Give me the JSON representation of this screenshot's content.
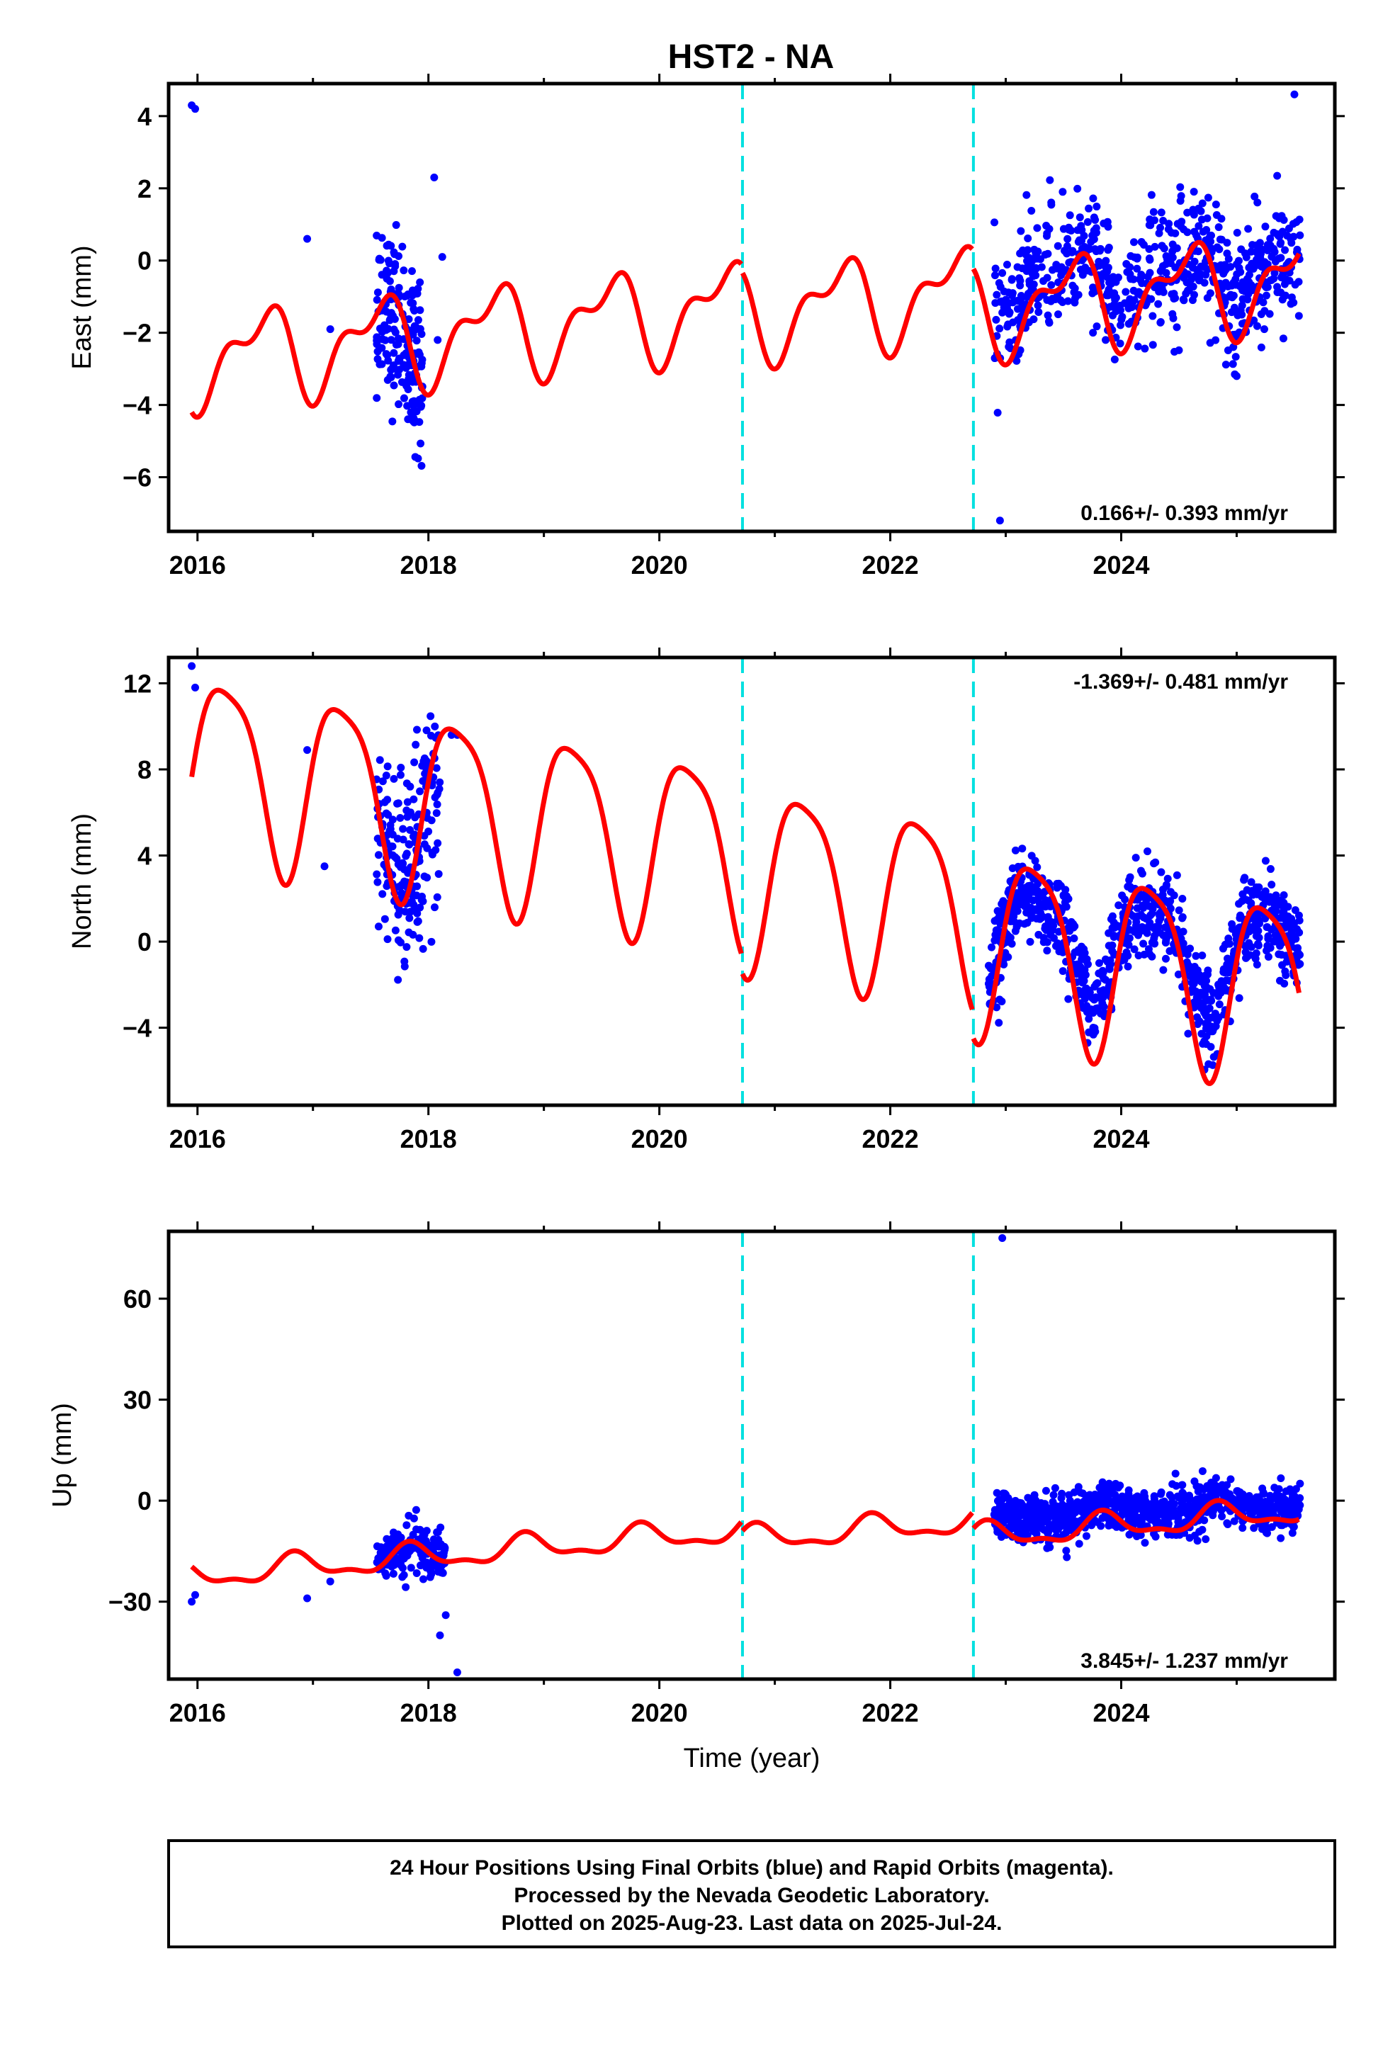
{
  "title": "HST2 - NA",
  "footer": {
    "lines": [
      "24 Hour Positions Using Final Orbits (blue) and Rapid Orbits (magenta).",
      "Processed by the Nevada Geodetic Laboratory.",
      "Plotted on 2025-Aug-23. Last data on 2025-Jul-24."
    ]
  },
  "colors": {
    "points": "#0000ff",
    "model": "#ff0000",
    "breaks": "#00e0e0",
    "frame": "#000000"
  },
  "chart_data": [
    {
      "type": "scatter",
      "panel": "east",
      "ylabel": "East (mm)",
      "xlabel": "",
      "xlim": [
        2015.75,
        2025.85
      ],
      "ylim": [
        -7.5,
        4.9
      ],
      "xticks": [
        2016,
        2018,
        2020,
        2022,
        2024
      ],
      "yticks": [
        -6,
        -4,
        -2,
        0,
        2,
        4
      ],
      "rate_label": "0.166+/- 0.393 mm/yr",
      "rate_position": "bottom-right",
      "breaks": [
        2020.72,
        2022.72
      ],
      "model": {
        "name": "",
        "trend_start": -2.8,
        "trend_end": 0.3,
        "amp1": 1.1,
        "amp2": 0.6,
        "phase1": 0.3,
        "phase2": 1.1,
        "offsets": [
          {
            "at": 2020.72,
            "value": -0.2
          },
          {
            "at": 2022.72,
            "value": -0.5
          }
        ]
      },
      "series": [
        {
          "name": "",
          "segments": [
            {
              "x": [
                2015.95,
                2015.98,
                2016.95,
                2017.15
              ],
              "y": [
                4.3,
                4.2,
                0.6,
                -1.9
              ]
            },
            {
              "range": [
                2017.55,
                2017.95
              ],
              "count": 180,
              "center": -2.3,
              "spread": 1.6
            },
            {
              "x": [
                2018.05,
                2018.12,
                2018.08
              ],
              "y": [
                2.3,
                0.1,
                -2.2
              ]
            },
            {
              "range": [
                2022.9,
                2025.55
              ],
              "count": 700,
              "center": 0.2,
              "spread": 1.1
            },
            {
              "x": [
                2022.95,
                2025.0,
                2025.5
              ],
              "y": [
                -7.2,
                -3.2,
                4.6
              ]
            }
          ]
        }
      ]
    },
    {
      "type": "scatter",
      "panel": "north",
      "ylabel": "North (mm)",
      "xlabel": "",
      "xlim": [
        2015.75,
        2025.85
      ],
      "ylim": [
        -7.6,
        13.2
      ],
      "xticks": [
        2016,
        2018,
        2020,
        2022,
        2024
      ],
      "yticks": [
        -4,
        0,
        4,
        8,
        12
      ],
      "rate_label": "-1.369+/- 0.481 mm/yr",
      "rate_position": "top-right",
      "breaks": [
        2020.72,
        2022.72
      ],
      "model": {
        "name": "",
        "trend_start": 8.6,
        "trend_end": -0.5,
        "amp1": 4.2,
        "amp2": 0.9,
        "phase1": 0.0,
        "phase2": 0.4,
        "offsets": [
          {
            "at": 2020.72,
            "value": -0.8
          },
          {
            "at": 2022.72,
            "value": -1.2
          }
        ]
      },
      "series": [
        {
          "name": "",
          "segments": [
            {
              "x": [
                2015.95,
                2015.98,
                2016.95,
                2017.1
              ],
              "y": [
                12.8,
                11.8,
                8.9,
                3.5
              ]
            },
            {
              "range": [
                2017.55,
                2018.1
              ],
              "count": 200,
              "center": 4.0,
              "spread": 3.2
            },
            {
              "x": [
                2018.2,
                2018.25,
                2018.0
              ],
              "y": [
                9.6,
                9.6,
                8.3
              ]
            },
            {
              "range": [
                2022.85,
                2025.55
              ],
              "count": 900,
              "center": 0.6,
              "spread": 1.4
            }
          ]
        }
      ]
    },
    {
      "type": "scatter",
      "panel": "up",
      "ylabel": "Up (mm)",
      "xlabel": "Time (year)",
      "xlim": [
        2015.75,
        2025.85
      ],
      "ylim": [
        -53,
        80
      ],
      "xticks": [
        2016,
        2018,
        2020,
        2022,
        2024
      ],
      "yticks": [
        -30,
        0,
        30,
        60
      ],
      "rate_label": "3.845+/- 1.237 mm/yr",
      "rate_position": "bottom-right",
      "breaks": [
        2020.72,
        2022.72
      ],
      "model": {
        "name": "",
        "trend_start": -23,
        "trend_end": 6,
        "amp1": 3.5,
        "amp2": 1.5,
        "phase1": 0.6,
        "phase2": 0.2,
        "offsets": [
          {
            "at": 2020.72,
            "value": -3
          },
          {
            "at": 2022.72,
            "value": -5
          }
        ]
      },
      "series": [
        {
          "name": "",
          "segments": [
            {
              "x": [
                2015.95,
                2015.98,
                2016.95,
                2017.15
              ],
              "y": [
                -30,
                -28,
                -29,
                -24
              ]
            },
            {
              "range": [
                2017.55,
                2018.15
              ],
              "count": 180,
              "center": -17,
              "spread": 5
            },
            {
              "x": [
                2018.1,
                2018.15,
                2018.25
              ],
              "y": [
                -40,
                -34,
                -51
              ]
            },
            {
              "x": [
                2022.97
              ],
              "y": [
                78
              ]
            },
            {
              "range": [
                2022.9,
                2025.55
              ],
              "count": 900,
              "center": 2,
              "spread": 4.5
            }
          ]
        }
      ]
    }
  ]
}
